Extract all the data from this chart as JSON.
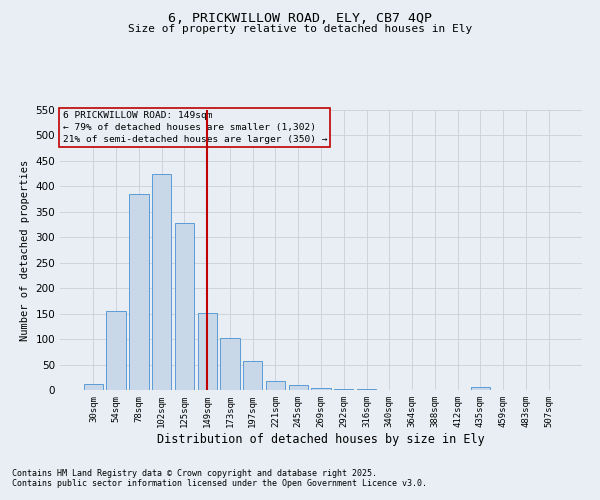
{
  "title_line1": "6, PRICKWILLOW ROAD, ELY, CB7 4QP",
  "title_line2": "Size of property relative to detached houses in Ely",
  "xlabel": "Distribution of detached houses by size in Ely",
  "ylabel": "Number of detached properties",
  "categories": [
    "30sqm",
    "54sqm",
    "78sqm",
    "102sqm",
    "125sqm",
    "149sqm",
    "173sqm",
    "197sqm",
    "221sqm",
    "245sqm",
    "269sqm",
    "292sqm",
    "316sqm",
    "340sqm",
    "364sqm",
    "388sqm",
    "412sqm",
    "435sqm",
    "459sqm",
    "483sqm",
    "507sqm"
  ],
  "values": [
    12,
    155,
    385,
    425,
    328,
    152,
    102,
    57,
    18,
    10,
    3,
    1,
    1,
    0,
    0,
    0,
    0,
    5,
    0,
    0,
    0
  ],
  "bar_color": "#c8d8e8",
  "bar_edge_color": "#5b9bd5",
  "grid_color": "#c8d0d8",
  "vline_color": "#c00000",
  "annotation_box_text": "6 PRICKWILLOW ROAD: 149sqm\n← 79% of detached houses are smaller (1,302)\n21% of semi-detached houses are larger (350) →",
  "annotation_box_color": "#c00000",
  "ylim": [
    0,
    550
  ],
  "yticks": [
    0,
    50,
    100,
    150,
    200,
    250,
    300,
    350,
    400,
    450,
    500,
    550
  ],
  "footnote_line1": "Contains HM Land Registry data © Crown copyright and database right 2025.",
  "footnote_line2": "Contains public sector information licensed under the Open Government Licence v3.0.",
  "bg_color": "#e8eef4"
}
